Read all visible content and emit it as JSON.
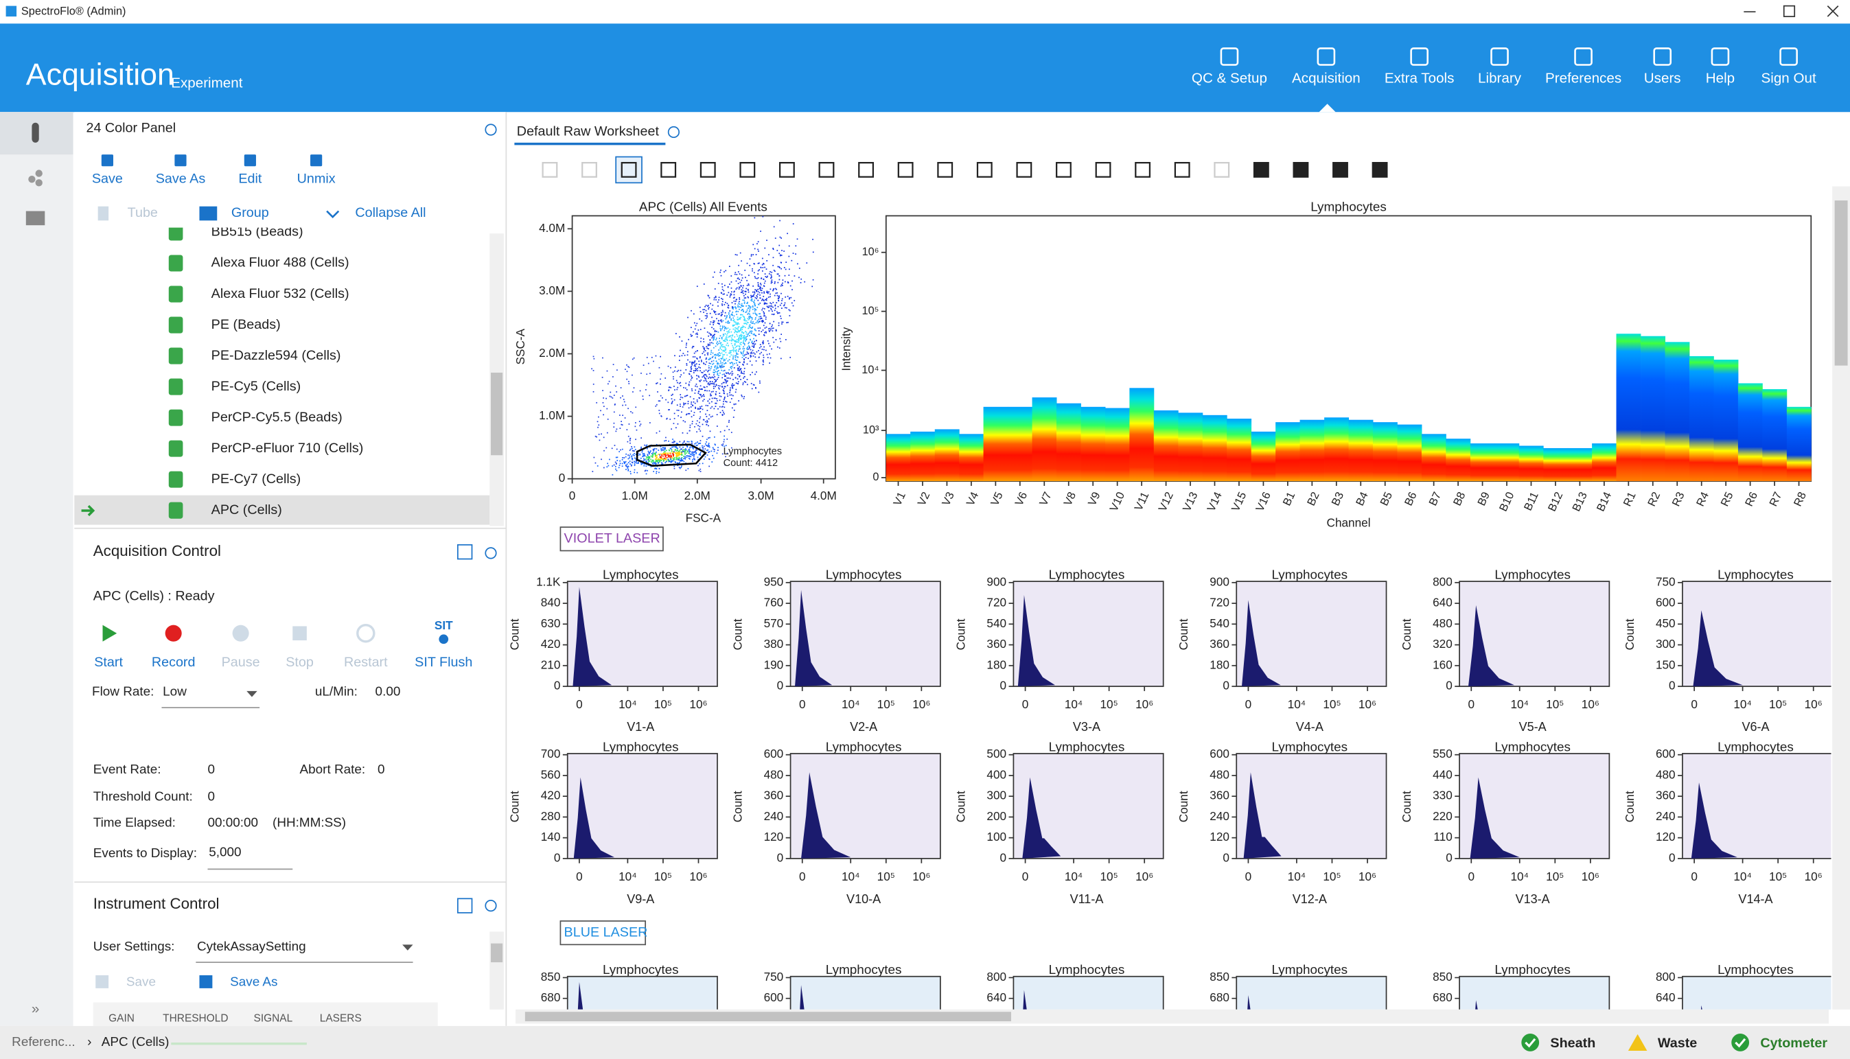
{
  "window": {
    "title": "SpectroFlo® (Admin)"
  },
  "header": {
    "title": "Acquisition",
    "subtitle": "Experiment",
    "nav": [
      "QC & Setup",
      "Acquisition",
      "Extra Tools",
      "Library",
      "Preferences",
      "Users",
      "Help",
      "Sign Out"
    ]
  },
  "panel": {
    "title": "24 Color Panel",
    "toolbar": [
      "Save",
      "Save As",
      "Edit",
      "Unmix"
    ],
    "tree_toolbar": [
      "Tube",
      "Group",
      "Collapse All"
    ],
    "tubes": [
      "BB515 (Beads)",
      "Alexa Fluor 488 (Cells)",
      "Alexa Fluor 532 (Cells)",
      "PE (Beads)",
      "PE-Dazzle594 (Cells)",
      "PE-Cy5 (Cells)",
      "PerCP-Cy5.5 (Beads)",
      "PerCP-eFluor 710 (Cells)",
      "PE-Cy7 (Cells)",
      "APC (Cells)"
    ]
  },
  "acquisition_control": {
    "title": "Acquisition Control",
    "status": "APC (Cells) : Ready",
    "buttons": [
      "Start",
      "Record",
      "Pause",
      "Stop",
      "Restart",
      "SIT Flush"
    ],
    "flow_rate_label": "Flow Rate:",
    "flow_rate": "Low",
    "ul_min_label": "uL/Min:",
    "ul_min": "0.00",
    "event_rate_label": "Event Rate:",
    "event_rate": "0",
    "abort_rate_label": "Abort Rate:",
    "abort_rate": "0",
    "threshold_count_label": "Threshold Count:",
    "threshold_count": "0",
    "time_elapsed_label": "Time Elapsed:",
    "time_elapsed": "00:00:00",
    "time_format": "(HH:MM:SS)",
    "events_to_display_label": "Events to Display:",
    "events_to_display": "5,000"
  },
  "instrument_control": {
    "title": "Instrument Control",
    "user_settings_label": "User Settings:",
    "user_settings": "CytekAssaySetting",
    "buttons": [
      "Save",
      "Save As"
    ],
    "tabs": [
      "GAIN",
      "THRESHOLD",
      "SIGNAL",
      "LASERS"
    ]
  },
  "worksheet": {
    "tab": "Default Raw Worksheet",
    "scatter": {
      "title": "APC (Cells) All Events",
      "x_label": "FSC-A",
      "y_label": "SSC-A",
      "xticks": [
        "0",
        "1.0M",
        "2.0M",
        "3.0M",
        "4.0M"
      ],
      "yticks": [
        "0",
        "1.0M",
        "2.0M",
        "3.0M",
        "4.0M"
      ],
      "gate": "Lymphocytes",
      "gate_count": "Count: 4412"
    },
    "spectrum": {
      "title": "Lymphocytes",
      "x_label": "Channel",
      "y_label": "Intensity",
      "yticks": [
        "0",
        "10³",
        "10⁴",
        "10⁵",
        "10⁶"
      ],
      "channels": [
        "V1",
        "V2",
        "V3",
        "V4",
        "V5",
        "V6",
        "V7",
        "V8",
        "V9",
        "V10",
        "V11",
        "V12",
        "V13",
        "V14",
        "V15",
        "V16",
        "B1",
        "B2",
        "B3",
        "B4",
        "B5",
        "B6",
        "B7",
        "B8",
        "B9",
        "B10",
        "B11",
        "B12",
        "B13",
        "B14",
        "R1",
        "R2",
        "R3",
        "R4",
        "R5",
        "R6",
        "R7",
        "R8"
      ]
    },
    "sections": [
      "VIOLET LASER",
      "BLUE LASER"
    ],
    "hist_y_label": "Count",
    "hist_xticks": [
      "0",
      "10⁴",
      "10⁵",
      "10⁶"
    ],
    "histograms": [
      {
        "title": "Lymphocytes",
        "x_label": "V1-A",
        "yticks": [
          0,
          210,
          420,
          630,
          840,
          "1.1K"
        ]
      },
      {
        "title": "Lymphocytes",
        "x_label": "V2-A",
        "yticks": [
          0,
          190,
          380,
          570,
          760,
          950
        ]
      },
      {
        "title": "Lymphocytes",
        "x_label": "V3-A",
        "yticks": [
          0,
          180,
          360,
          540,
          720,
          900
        ]
      },
      {
        "title": "Lymphocytes",
        "x_label": "V4-A",
        "yticks": [
          0,
          180,
          360,
          540,
          720,
          900
        ]
      },
      {
        "title": "Lymphocytes",
        "x_label": "V5-A",
        "yticks": [
          0,
          160,
          320,
          480,
          640,
          800
        ]
      },
      {
        "title": "Lymphocytes",
        "x_label": "V6-A",
        "yticks": [
          0,
          150,
          300,
          450,
          600,
          750
        ]
      },
      {
        "title": "Lymphocytes",
        "x_label": "V9-A",
        "yticks": [
          0,
          140,
          280,
          420,
          560,
          700
        ]
      },
      {
        "title": "Lymphocytes",
        "x_label": "V10-A",
        "yticks": [
          0,
          120,
          240,
          360,
          480,
          600
        ]
      },
      {
        "title": "Lymphocytes",
        "x_label": "V11-A",
        "yticks": [
          0,
          100,
          200,
          300,
          400,
          500
        ]
      },
      {
        "title": "Lymphocytes",
        "x_label": "V12-A",
        "yticks": [
          0,
          120,
          240,
          360,
          480,
          600
        ]
      },
      {
        "title": "Lymphocytes",
        "x_label": "V13-A",
        "yticks": [
          0,
          110,
          220,
          330,
          440,
          550
        ]
      },
      {
        "title": "Lymphocytes",
        "x_label": "V14-A",
        "yticks": [
          0,
          120,
          240,
          360,
          480,
          600
        ]
      }
    ],
    "blue_histograms": [
      {
        "title": "Lymphocytes",
        "yticks": [
          680,
          850
        ]
      },
      {
        "title": "Lymphocytes",
        "yticks": [
          600,
          750
        ]
      },
      {
        "title": "Lymphocytes",
        "yticks": [
          640,
          800
        ]
      },
      {
        "title": "Lymphocytes",
        "yticks": [
          680,
          850
        ]
      },
      {
        "title": "Lymphocytes",
        "yticks": [
          680,
          850
        ]
      },
      {
        "title": "Lymphocytes",
        "yticks": [
          640,
          800
        ]
      }
    ]
  },
  "status_bar": {
    "breadcrumb": "Referenc...",
    "current": "APC (Cells)",
    "indicators": [
      "Sheath",
      "Waste",
      "Cytometer"
    ]
  }
}
